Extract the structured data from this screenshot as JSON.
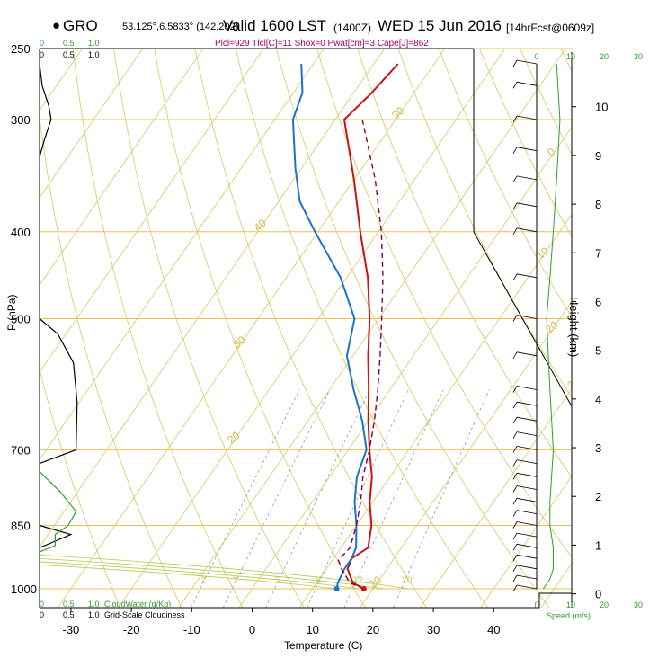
{
  "header": {
    "station": "GRO",
    "coords": "53.125°,6.5833° (142,202)",
    "valid": "Valid 1600 LST",
    "zulu": "(1400Z)",
    "date": "WED 15 Jun 2016",
    "forecast": "[14hrFcst@0609z]",
    "params": "Plcl=929 Tlcl[C]=11 Shox=0 Pwat[cm]=3 Cape[J]=862"
  },
  "colors": {
    "temperature": "#cc1111",
    "dewpoint": "#1a73d0",
    "parcel": "#800040",
    "isobar": "#e6c350",
    "grid": "#d8c860",
    "cloud": "#2e9e2e",
    "params_text": "#a0006e"
  },
  "chart_data": {
    "type": "line",
    "subtype": "skew-T log-p sounding",
    "xlabel": "Temperature (C)",
    "ylabel": "P (hPa)",
    "y2label": "Height (km)",
    "xlim": [
      -35,
      46
    ],
    "ylim": [
      1040,
      250
    ],
    "pressure_ticks": [
      1000,
      850,
      700,
      500,
      400,
      300,
      250
    ],
    "temperature_ticks": [
      -30,
      -20,
      -10,
      0,
      10,
      20,
      30,
      40
    ],
    "height_ticks_km": [
      0,
      1,
      2,
      3,
      4,
      5,
      6,
      7,
      8,
      9,
      10
    ],
    "isotherm_labels": [
      {
        "value": "0",
        "t": 0,
        "p": 330
      },
      {
        "value": "10",
        "t": 10,
        "p": 430
      },
      {
        "value": "20",
        "t": 20,
        "p": 520
      },
      {
        "value": "30",
        "t": 30,
        "p": 600
      },
      {
        "value": "20",
        "t": 20,
        "p": 1000
      },
      {
        "value": "30",
        "t": -30,
        "p": 300
      },
      {
        "value": "40",
        "t": -40,
        "p": 400
      },
      {
        "value": "30",
        "t": -30,
        "p": 540
      },
      {
        "value": "20",
        "t": -20,
        "p": 690
      }
    ],
    "mixing_ratio_labels": [
      "2",
      "3",
      "5",
      "8",
      "12",
      "20"
    ],
    "series": [
      {
        "name": "Temperature",
        "p": [
          1000,
          985,
          950,
          925,
          900,
          850,
          800,
          750,
          700,
          650,
          600,
          550,
          500,
          450,
          400,
          350,
          300,
          280,
          260
        ],
        "t": [
          18.5,
          16,
          13.5,
          13,
          14.5,
          12.5,
          9.5,
          7,
          3.5,
          0,
          -3.5,
          -7.5,
          -11.5,
          -16.5,
          -23,
          -30,
          -38.5,
          -37,
          -36
        ]
      },
      {
        "name": "Dewpoint",
        "p": [
          1000,
          985,
          950,
          925,
          900,
          850,
          800,
          750,
          700,
          650,
          600,
          550,
          500,
          450,
          400,
          370,
          340,
          300,
          280,
          260
        ],
        "t": [
          14,
          13.5,
          13,
          13,
          12.5,
          10,
          7,
          4.5,
          3,
          -1,
          -6,
          -11,
          -14,
          -21,
          -30.5,
          -36.5,
          -41,
          -47,
          -48.5,
          -52
        ]
      },
      {
        "name": "Parcel",
        "p": [
          1000,
          985,
          950,
          929,
          900,
          850,
          800,
          750,
          700,
          650,
          600,
          550,
          500,
          450,
          400,
          350,
          300
        ],
        "t": [
          18.5,
          15.5,
          12.5,
          11,
          11.5,
          10,
          8,
          5.5,
          3.5,
          1,
          -2,
          -5.5,
          -9.5,
          -14,
          -19.5,
          -26.5,
          -35.5
        ]
      }
    ],
    "surface_markers": [
      {
        "series": "Temperature",
        "t": 18.5,
        "p": 1000
      },
      {
        "series": "Dewpoint",
        "t": 14,
        "p": 1000
      }
    ],
    "cloud_panel": {
      "water_ticks": [
        "0",
        "0.5",
        "1.0"
      ],
      "water_label": "CloudWater (g/Kg)",
      "cover_ticks": [
        "0",
        "0.5",
        "1.0"
      ],
      "cover_label": "Grid-Scale Cloudiness",
      "cloudiness": [
        {
          "p": 260,
          "v": 0
        },
        {
          "p": 275,
          "v": 0.05
        },
        {
          "p": 290,
          "v": 0.18
        },
        {
          "p": 300,
          "v": 0.22
        },
        {
          "p": 315,
          "v": 0.1
        },
        {
          "p": 330,
          "v": 0
        },
        {
          "p": 500,
          "v": 0
        },
        {
          "p": 520,
          "v": 0.35
        },
        {
          "p": 560,
          "v": 0.65
        },
        {
          "p": 620,
          "v": 0.72
        },
        {
          "p": 700,
          "v": 0.7
        },
        {
          "p": 725,
          "v": 0
        },
        {
          "p": 850,
          "v": 0
        },
        {
          "p": 870,
          "v": 0.6
        },
        {
          "p": 890,
          "v": 0.2
        },
        {
          "p": 900,
          "v": 0
        }
      ],
      "cloudwater": [
        {
          "p": 740,
          "v": 0
        },
        {
          "p": 780,
          "v": 0.4
        },
        {
          "p": 820,
          "v": 0.7
        },
        {
          "p": 850,
          "v": 0.55
        },
        {
          "p": 870,
          "v": 0.3
        },
        {
          "p": 895,
          "v": 0.3
        },
        {
          "p": 910,
          "v": 0
        }
      ]
    },
    "wind_panel": {
      "speed_ticks": [
        "0",
        "10",
        "20",
        "30"
      ],
      "speed_label": "Speed (m/s)",
      "speed": [
        {
          "p": 1000,
          "v": 2
        },
        {
          "p": 975,
          "v": 4
        },
        {
          "p": 950,
          "v": 5
        },
        {
          "p": 900,
          "v": 5
        },
        {
          "p": 850,
          "v": 4
        },
        {
          "p": 800,
          "v": 4
        },
        {
          "p": 700,
          "v": 5
        },
        {
          "p": 600,
          "v": 4
        },
        {
          "p": 500,
          "v": 3
        },
        {
          "p": 450,
          "v": 4
        },
        {
          "p": 400,
          "v": 5
        },
        {
          "p": 350,
          "v": 6
        },
        {
          "p": 300,
          "v": 7
        },
        {
          "p": 260,
          "v": 6
        }
      ],
      "barb_pressures": [
        1000,
        975,
        950,
        925,
        900,
        875,
        850,
        825,
        800,
        775,
        750,
        725,
        700,
        675,
        650,
        625,
        600,
        550,
        500,
        450,
        400,
        375,
        350,
        325,
        300,
        275,
        260
      ]
    }
  }
}
